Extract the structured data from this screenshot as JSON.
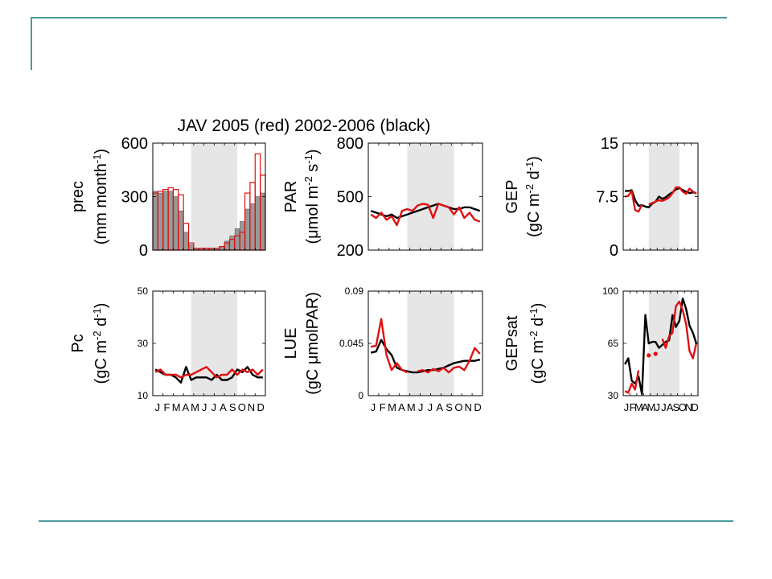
{
  "colors": {
    "rule": "#4a9a9a",
    "red": "#e01010",
    "black": "#000000",
    "shade": "#e6e6e6",
    "bar_fill": "#999999"
  },
  "title": "JAV 2005 (red) 2002-2006 (black)",
  "month_ticks": [
    "J",
    "F",
    "M",
    "A",
    "M",
    "J",
    "J",
    "A",
    "S",
    "O",
    "N",
    "D"
  ],
  "chart_data": [
    {
      "id": "prec",
      "type": "bar",
      "ylabel": [
        "prec",
        "(mm month",
        "-1",
        ")"
      ],
      "ylim": [
        0,
        600
      ],
      "yticks": [
        "0",
        "300",
        "600"
      ],
      "ytick_values": [
        0,
        300,
        600
      ],
      "shade_range": [
        7.5,
        16.5
      ],
      "show_month_labels": false,
      "series": [
        {
          "name": "2002-2006",
          "color": "#000000",
          "style": "filled-bar",
          "values": [
            330,
            320,
            330,
            330,
            300,
            220,
            100,
            30,
            10,
            10,
            10,
            10,
            10,
            20,
            50,
            80,
            120,
            160,
            230,
            260,
            300,
            320
          ]
        },
        {
          "name": "2005",
          "color": "#e01010",
          "style": "outline-bar",
          "values": [
            320,
            330,
            340,
            350,
            340,
            310,
            150,
            40,
            10,
            10,
            10,
            10,
            10,
            20,
            40,
            60,
            80,
            100,
            320,
            380,
            540,
            420
          ]
        }
      ]
    },
    {
      "id": "par",
      "type": "line",
      "ylabel": [
        "PAR",
        "(μmol m",
        "-2",
        " s",
        "-1",
        ")"
      ],
      "ylim": [
        200,
        800
      ],
      "yticks": [
        "200",
        "500",
        "800"
      ],
      "ytick_values": [
        200,
        500,
        800
      ],
      "shade_range": [
        7.5,
        16.5
      ],
      "show_month_labels": false,
      "series": [
        {
          "name": "2002-2006",
          "color": "#000000",
          "values": [
            420,
            410,
            400,
            390,
            400,
            380,
            390,
            400,
            410,
            420,
            430,
            440,
            450,
            460,
            450,
            440,
            430,
            430,
            440,
            440,
            430,
            420
          ]
        },
        {
          "name": "2005",
          "color": "#e01010",
          "values": [
            400,
            380,
            410,
            370,
            390,
            340,
            420,
            430,
            420,
            450,
            460,
            455,
            380,
            460,
            450,
            440,
            400,
            440,
            380,
            410,
            370,
            360
          ]
        }
      ]
    },
    {
      "id": "gep",
      "type": "line",
      "ylabel": [
        "GEP",
        "(gC m",
        "-2",
        " d",
        "-1",
        ")"
      ],
      "ylim": [
        0,
        15
      ],
      "yticks": [
        "0",
        "7.5",
        "15"
      ],
      "ytick_values": [
        0,
        7.5,
        15
      ],
      "shade_range": [
        7.5,
        16.5
      ],
      "show_month_labels": false,
      "series": [
        {
          "name": "2002-2006",
          "color": "#000000",
          "values": [
            8.3,
            8.3,
            8.4,
            7.0,
            6.2,
            6.3,
            6.1,
            6.0,
            6.5,
            6.8,
            7.5,
            7.2,
            7.4,
            7.8,
            8.1,
            8.5,
            8.7,
            8.4,
            8.2,
            8.0,
            8.1,
            8.0
          ]
        },
        {
          "name": "2005",
          "color": "#e01010",
          "values": [
            7.5,
            7.6,
            8.3,
            5.6,
            5.4,
            6.4,
            null,
            6.4,
            6.6,
            6.8,
            7.0,
            6.9,
            7.1,
            7.4,
            8.0,
            8.8,
            8.8,
            8.2,
            7.9,
            8.6,
            8.2,
            7.9
          ]
        }
      ]
    },
    {
      "id": "pc",
      "type": "line",
      "ylabel": [
        "Pc",
        "(gC m",
        "-2",
        " d",
        "-1",
        ")"
      ],
      "ylim": [
        10,
        50
      ],
      "yticks": [
        "10",
        "30",
        "50"
      ],
      "ytick_values": [
        10,
        30,
        50
      ],
      "shade_range": [
        7.5,
        16.5
      ],
      "show_month_labels": true,
      "series": [
        {
          "name": "2002-2006",
          "color": "#000000",
          "values": [
            20,
            19,
            18,
            18,
            17,
            15,
            21,
            16,
            17,
            17,
            17,
            16,
            18,
            16,
            16,
            17,
            20,
            19,
            21,
            18,
            17,
            17
          ]
        },
        {
          "name": "2005",
          "color": "#e01010",
          "values": [
            19,
            20,
            18,
            18,
            18,
            17,
            18,
            18,
            19,
            20,
            21,
            19,
            17,
            18,
            18,
            20,
            18,
            20,
            19,
            20,
            18,
            20
          ]
        }
      ]
    },
    {
      "id": "lue",
      "type": "line",
      "ylabel": [
        "LUE",
        "(gC μmolPAR)"
      ],
      "ylim": [
        0,
        0.09
      ],
      "yticks": [
        "0",
        "0.045",
        "0.09"
      ],
      "ytick_values": [
        0,
        0.045,
        0.09
      ],
      "shade_range": [
        7.5,
        16.5
      ],
      "show_month_labels": true,
      "series": [
        {
          "name": "2002-2006",
          "color": "#000000",
          "values": [
            0.037,
            0.038,
            0.048,
            0.04,
            0.035,
            0.024,
            0.022,
            0.021,
            0.02,
            0.02,
            0.021,
            0.022,
            0.022,
            0.023,
            0.024,
            0.026,
            0.028,
            0.029,
            0.03,
            0.03,
            0.03,
            0.031
          ]
        },
        {
          "name": "2005",
          "color": "#e01010",
          "values": [
            0.042,
            0.043,
            0.066,
            0.035,
            0.022,
            0.028,
            0.022,
            0.02,
            null,
            0.021,
            0.022,
            0.02,
            0.023,
            0.021,
            0.024,
            0.02,
            0.024,
            0.025,
            0.022,
            0.03,
            0.041,
            0.036
          ]
        }
      ]
    },
    {
      "id": "gepsat",
      "type": "line",
      "ylabel": [
        "GEPsat",
        "(gC m",
        "-2",
        " d",
        "-1",
        ")"
      ],
      "ylim": [
        30,
        100
      ],
      "yticks": [
        "30",
        "65",
        "100"
      ],
      "ytick_values": [
        30,
        65,
        100
      ],
      "shade_range": [
        7.5,
        16.5
      ],
      "show_month_labels": true,
      "series": [
        {
          "name": "2002-2006",
          "color": "#000000",
          "values": [
            51,
            55,
            40,
            38,
            43,
            31,
            84,
            65,
            66,
            66,
            62,
            64,
            66,
            67,
            84,
            76,
            80,
            95,
            88,
            77,
            72,
            65
          ]
        },
        {
          "name": "2005",
          "color": "#e01010",
          "values": [
            33,
            32,
            38,
            34,
            47,
            null,
            null,
            57,
            null,
            58,
            null,
            68,
            62,
            70,
            72,
            90,
            93,
            87,
            78,
            60,
            55,
            65
          ]
        }
      ]
    }
  ]
}
